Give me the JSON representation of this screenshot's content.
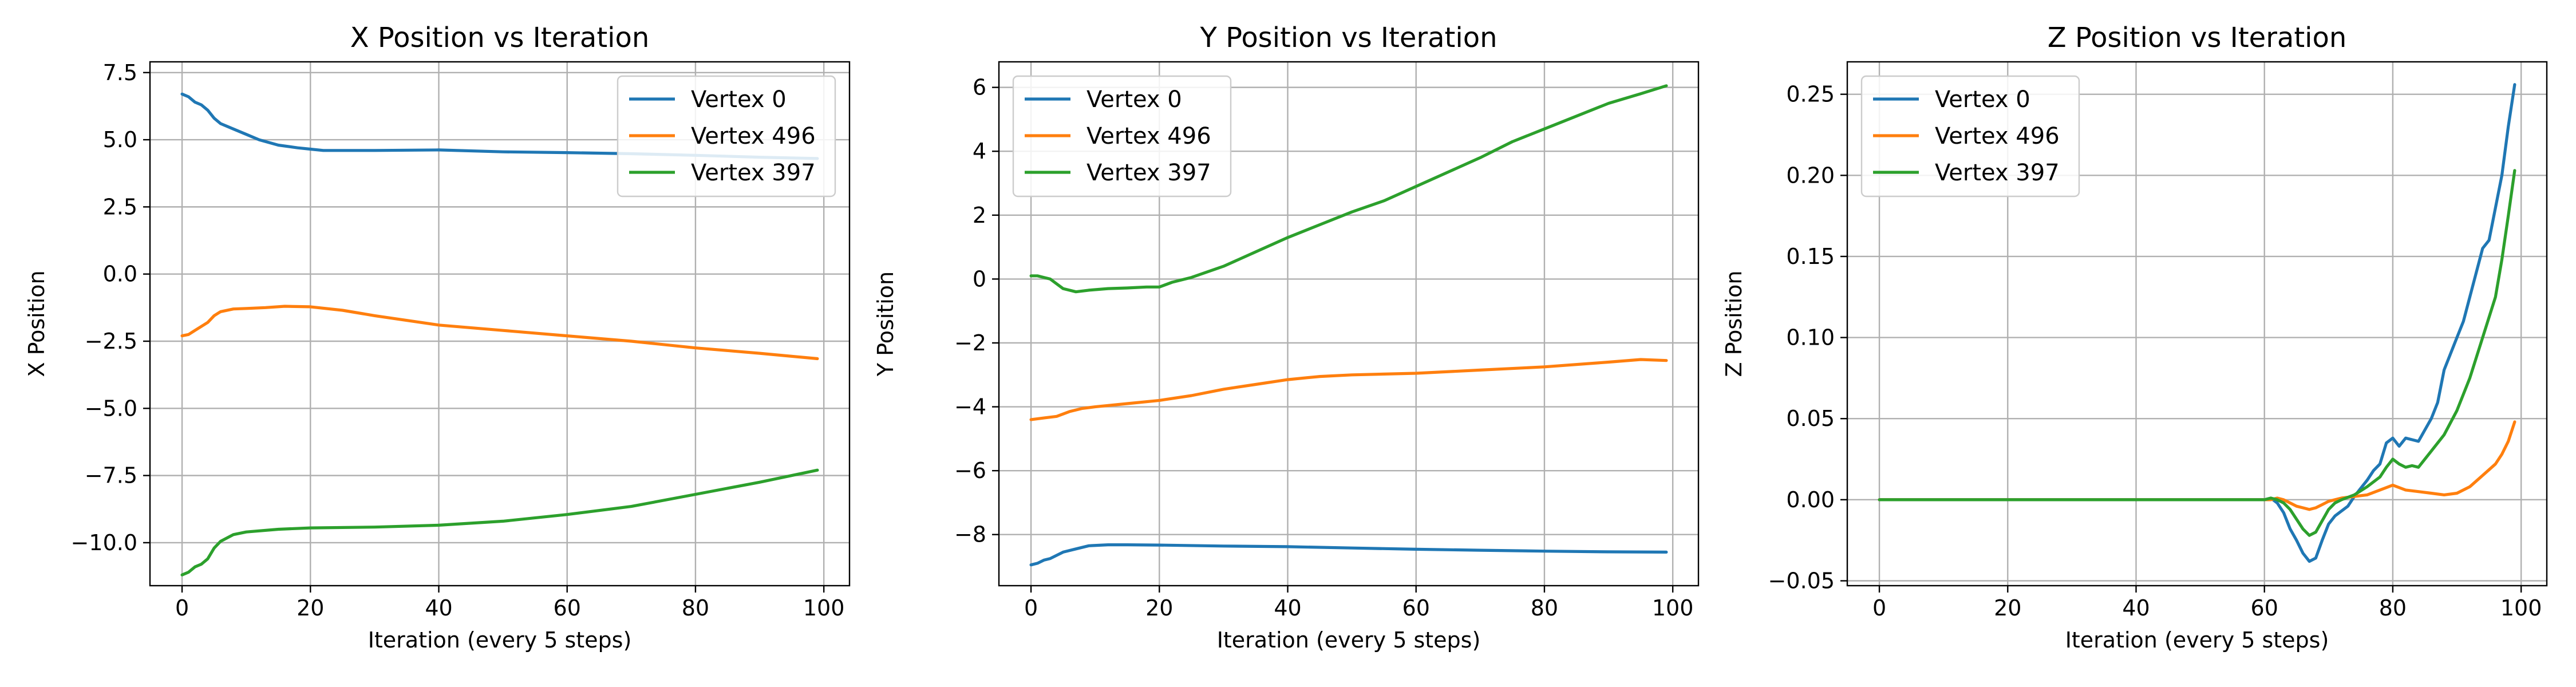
{
  "colors": {
    "vertex0": "#1f77b4",
    "vertex496": "#ff7f0e",
    "vertex397": "#2ca02c",
    "grid": "#b0b0b0"
  },
  "chart_data": [
    {
      "type": "line",
      "title": "X Position vs Iteration",
      "xlabel": "Iteration (every 5 steps)",
      "ylabel": "X Position",
      "xlim": [
        -5,
        104
      ],
      "ylim": [
        -11.6,
        7.9
      ],
      "xticks": [
        0,
        20,
        40,
        60,
        80,
        100
      ],
      "xtick_labels": [
        "0",
        "20",
        "40",
        "60",
        "80",
        "100"
      ],
      "yticks": [
        -10,
        -7.5,
        -5,
        -2.5,
        0,
        2.5,
        5,
        7.5
      ],
      "ytick_labels": [
        "−10.0",
        "−7.5",
        "−5.0",
        "−2.5",
        "0.0",
        "2.5",
        "5.0",
        "7.5"
      ],
      "grid": true,
      "legend": "upper right",
      "series": [
        {
          "name": "Vertex 0",
          "color": "#1f77b4",
          "points": [
            [
              0,
              6.7
            ],
            [
              1,
              6.6
            ],
            [
              2,
              6.4
            ],
            [
              3,
              6.3
            ],
            [
              4,
              6.1
            ],
            [
              5,
              5.8
            ],
            [
              6,
              5.6
            ],
            [
              8,
              5.4
            ],
            [
              10,
              5.2
            ],
            [
              12,
              5.0
            ],
            [
              15,
              4.8
            ],
            [
              18,
              4.7
            ],
            [
              20,
              4.65
            ],
            [
              22,
              4.6
            ],
            [
              30,
              4.6
            ],
            [
              40,
              4.62
            ],
            [
              50,
              4.55
            ],
            [
              60,
              4.52
            ],
            [
              70,
              4.48
            ],
            [
              80,
              4.42
            ],
            [
              90,
              4.35
            ],
            [
              99,
              4.3
            ]
          ]
        },
        {
          "name": "Vertex 496",
          "color": "#ff7f0e",
          "points": [
            [
              0,
              -2.3
            ],
            [
              1,
              -2.25
            ],
            [
              2,
              -2.1
            ],
            [
              3,
              -1.95
            ],
            [
              4,
              -1.8
            ],
            [
              5,
              -1.55
            ],
            [
              6,
              -1.4
            ],
            [
              8,
              -1.3
            ],
            [
              10,
              -1.28
            ],
            [
              13,
              -1.25
            ],
            [
              16,
              -1.2
            ],
            [
              20,
              -1.22
            ],
            [
              25,
              -1.35
            ],
            [
              30,
              -1.55
            ],
            [
              40,
              -1.9
            ],
            [
              50,
              -2.1
            ],
            [
              60,
              -2.3
            ],
            [
              70,
              -2.5
            ],
            [
              80,
              -2.75
            ],
            [
              90,
              -2.95
            ],
            [
              99,
              -3.15
            ]
          ]
        },
        {
          "name": "Vertex 397",
          "color": "#2ca02c",
          "points": [
            [
              0,
              -11.2
            ],
            [
              1,
              -11.1
            ],
            [
              2,
              -10.9
            ],
            [
              3,
              -10.8
            ],
            [
              4,
              -10.6
            ],
            [
              5,
              -10.2
            ],
            [
              6,
              -9.95
            ],
            [
              8,
              -9.7
            ],
            [
              10,
              -9.6
            ],
            [
              15,
              -9.5
            ],
            [
              20,
              -9.45
            ],
            [
              30,
              -9.42
            ],
            [
              40,
              -9.35
            ],
            [
              50,
              -9.2
            ],
            [
              60,
              -8.95
            ],
            [
              70,
              -8.65
            ],
            [
              80,
              -8.2
            ],
            [
              90,
              -7.75
            ],
            [
              99,
              -7.3
            ]
          ]
        }
      ]
    },
    {
      "type": "line",
      "title": "Y Position vs Iteration",
      "xlabel": "Iteration (every 5 steps)",
      "ylabel": "Y Position",
      "xlim": [
        -5,
        104
      ],
      "ylim": [
        -9.6,
        6.8
      ],
      "xticks": [
        0,
        20,
        40,
        60,
        80,
        100
      ],
      "xtick_labels": [
        "0",
        "20",
        "40",
        "60",
        "80",
        "100"
      ],
      "yticks": [
        -8,
        -6,
        -4,
        -2,
        0,
        2,
        4,
        6
      ],
      "ytick_labels": [
        "−8",
        "−6",
        "−4",
        "−2",
        "0",
        "2",
        "4",
        "6"
      ],
      "grid": true,
      "legend": "upper left",
      "series": [
        {
          "name": "Vertex 0",
          "color": "#1f77b4",
          "points": [
            [
              0,
              -8.95
            ],
            [
              1,
              -8.9
            ],
            [
              2,
              -8.8
            ],
            [
              3,
              -8.75
            ],
            [
              5,
              -8.55
            ],
            [
              7,
              -8.45
            ],
            [
              9,
              -8.35
            ],
            [
              12,
              -8.32
            ],
            [
              15,
              -8.32
            ],
            [
              20,
              -8.33
            ],
            [
              30,
              -8.36
            ],
            [
              40,
              -8.38
            ],
            [
              50,
              -8.42
            ],
            [
              60,
              -8.46
            ],
            [
              70,
              -8.49
            ],
            [
              80,
              -8.52
            ],
            [
              90,
              -8.54
            ],
            [
              99,
              -8.55
            ]
          ]
        },
        {
          "name": "Vertex 496",
          "color": "#ff7f0e",
          "points": [
            [
              0,
              -4.4
            ],
            [
              2,
              -4.35
            ],
            [
              4,
              -4.3
            ],
            [
              6,
              -4.15
            ],
            [
              8,
              -4.05
            ],
            [
              10,
              -4.0
            ],
            [
              15,
              -3.9
            ],
            [
              20,
              -3.8
            ],
            [
              25,
              -3.65
            ],
            [
              30,
              -3.45
            ],
            [
              35,
              -3.3
            ],
            [
              40,
              -3.15
            ],
            [
              45,
              -3.05
            ],
            [
              50,
              -3.0
            ],
            [
              60,
              -2.95
            ],
            [
              70,
              -2.85
            ],
            [
              80,
              -2.75
            ],
            [
              90,
              -2.6
            ],
            [
              95,
              -2.52
            ],
            [
              99,
              -2.55
            ]
          ]
        },
        {
          "name": "Vertex 397",
          "color": "#2ca02c",
          "points": [
            [
              0,
              0.1
            ],
            [
              1,
              0.1
            ],
            [
              2,
              0.05
            ],
            [
              3,
              0.0
            ],
            [
              4,
              -0.15
            ],
            [
              5,
              -0.3
            ],
            [
              7,
              -0.4
            ],
            [
              9,
              -0.35
            ],
            [
              12,
              -0.3
            ],
            [
              15,
              -0.28
            ],
            [
              18,
              -0.25
            ],
            [
              20,
              -0.25
            ],
            [
              22,
              -0.1
            ],
            [
              25,
              0.05
            ],
            [
              30,
              0.4
            ],
            [
              35,
              0.85
            ],
            [
              40,
              1.3
            ],
            [
              45,
              1.7
            ],
            [
              50,
              2.1
            ],
            [
              55,
              2.45
            ],
            [
              60,
              2.9
            ],
            [
              65,
              3.35
            ],
            [
              70,
              3.8
            ],
            [
              75,
              4.3
            ],
            [
              80,
              4.7
            ],
            [
              85,
              5.1
            ],
            [
              90,
              5.5
            ],
            [
              95,
              5.8
            ],
            [
              99,
              6.05
            ]
          ]
        }
      ]
    },
    {
      "type": "line",
      "title": "Z Position vs Iteration",
      "xlabel": "Iteration (every 5 steps)",
      "ylabel": "Z Position",
      "xlim": [
        -5,
        104
      ],
      "ylim": [
        -0.053,
        0.27
      ],
      "xticks": [
        0,
        20,
        40,
        60,
        80,
        100
      ],
      "xtick_labels": [
        "0",
        "20",
        "40",
        "60",
        "80",
        "100"
      ],
      "yticks": [
        -0.05,
        0,
        0.05,
        0.1,
        0.15,
        0.2,
        0.25
      ],
      "ytick_labels": [
        "−0.05",
        "0.00",
        "0.05",
        "0.10",
        "0.15",
        "0.20",
        "0.25"
      ],
      "grid": true,
      "legend": "upper left",
      "series": [
        {
          "name": "Vertex 0",
          "color": "#1f77b4",
          "points": [
            [
              0,
              0
            ],
            [
              20,
              0
            ],
            [
              40,
              0
            ],
            [
              60,
              0
            ],
            [
              61,
              0.001
            ],
            [
              62,
              -0.002
            ],
            [
              63,
              -0.008
            ],
            [
              64,
              -0.018
            ],
            [
              65,
              -0.025
            ],
            [
              66,
              -0.033
            ],
            [
              67,
              -0.038
            ],
            [
              68,
              -0.036
            ],
            [
              69,
              -0.025
            ],
            [
              70,
              -0.015
            ],
            [
              71,
              -0.01
            ],
            [
              72,
              -0.007
            ],
            [
              73,
              -0.004
            ],
            [
              74,
              0.002
            ],
            [
              75,
              0.007
            ],
            [
              76,
              0.012
            ],
            [
              77,
              0.018
            ],
            [
              78,
              0.022
            ],
            [
              79,
              0.035
            ],
            [
              80,
              0.038
            ],
            [
              81,
              0.033
            ],
            [
              82,
              0.038
            ],
            [
              83,
              0.037
            ],
            [
              84,
              0.036
            ],
            [
              85,
              0.043
            ],
            [
              86,
              0.05
            ],
            [
              87,
              0.06
            ],
            [
              88,
              0.08
            ],
            [
              89,
              0.09
            ],
            [
              90,
              0.1
            ],
            [
              91,
              0.11
            ],
            [
              92,
              0.125
            ],
            [
              93,
              0.14
            ],
            [
              94,
              0.155
            ],
            [
              95,
              0.16
            ],
            [
              96,
              0.18
            ],
            [
              97,
              0.2
            ],
            [
              98,
              0.23
            ],
            [
              99,
              0.256
            ]
          ]
        },
        {
          "name": "Vertex 496",
          "color": "#ff7f0e",
          "points": [
            [
              0,
              0
            ],
            [
              20,
              0
            ],
            [
              40,
              0
            ],
            [
              60,
              0
            ],
            [
              61,
              0.0
            ],
            [
              62,
              0.001
            ],
            [
              63,
              0.0
            ],
            [
              64,
              -0.002
            ],
            [
              65,
              -0.004
            ],
            [
              66,
              -0.005
            ],
            [
              67,
              -0.006
            ],
            [
              68,
              -0.005
            ],
            [
              69,
              -0.003
            ],
            [
              70,
              -0.001
            ],
            [
              72,
              0.001
            ],
            [
              74,
              0.002
            ],
            [
              76,
              0.003
            ],
            [
              78,
              0.006
            ],
            [
              80,
              0.009
            ],
            [
              82,
              0.006
            ],
            [
              84,
              0.005
            ],
            [
              86,
              0.004
            ],
            [
              88,
              0.003
            ],
            [
              90,
              0.004
            ],
            [
              92,
              0.008
            ],
            [
              94,
              0.015
            ],
            [
              96,
              0.022
            ],
            [
              97,
              0.028
            ],
            [
              98,
              0.036
            ],
            [
              99,
              0.048
            ]
          ]
        },
        {
          "name": "Vertex 397",
          "color": "#2ca02c",
          "points": [
            [
              0,
              0
            ],
            [
              20,
              0
            ],
            [
              40,
              0
            ],
            [
              60,
              0
            ],
            [
              61,
              0.001
            ],
            [
              62,
              0.0
            ],
            [
              63,
              -0.002
            ],
            [
              64,
              -0.006
            ],
            [
              65,
              -0.012
            ],
            [
              66,
              -0.018
            ],
            [
              67,
              -0.022
            ],
            [
              68,
              -0.02
            ],
            [
              69,
              -0.013
            ],
            [
              70,
              -0.006
            ],
            [
              71,
              -0.002
            ],
            [
              72,
              0.0
            ],
            [
              74,
              0.003
            ],
            [
              76,
              0.008
            ],
            [
              78,
              0.014
            ],
            [
              79,
              0.02
            ],
            [
              80,
              0.025
            ],
            [
              81,
              0.022
            ],
            [
              82,
              0.02
            ],
            [
              83,
              0.021
            ],
            [
              84,
              0.02
            ],
            [
              85,
              0.025
            ],
            [
              86,
              0.03
            ],
            [
              88,
              0.04
            ],
            [
              90,
              0.055
            ],
            [
              92,
              0.075
            ],
            [
              94,
              0.1
            ],
            [
              96,
              0.125
            ],
            [
              97,
              0.148
            ],
            [
              98,
              0.175
            ],
            [
              99,
              0.203
            ]
          ]
        }
      ]
    }
  ]
}
